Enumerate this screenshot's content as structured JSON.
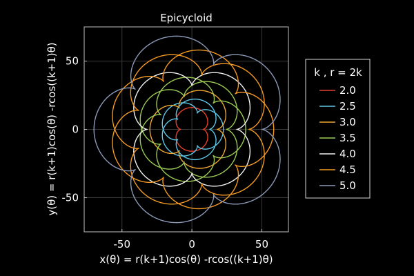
{
  "chart_data": {
    "type": "line",
    "title": "Epicycloid",
    "xlabel": "x(θ) = r(k+1)cos(θ) -rcos((k+1)θ)",
    "ylabel": "y(θ) = r(k+1)cos(θ) -rcos((k+1)θ)",
    "xlim": [
      -77,
      69
    ],
    "ylim": [
      -75,
      75
    ],
    "x_ticks": [
      -50,
      0,
      50
    ],
    "x_tick_labels": [
      "-50",
      "0",
      "50"
    ],
    "y_ticks": [
      -50,
      0,
      50
    ],
    "y_tick_labels": [
      "-50",
      "0",
      "50"
    ],
    "grid": true,
    "legend": {
      "title": "k , r = 2k",
      "placement": "right"
    },
    "background": "#000000",
    "series": [
      {
        "name": "2.0",
        "k": 2.0,
        "r": 4,
        "color": "#e8402c"
      },
      {
        "name": "2.5",
        "k": 2.5,
        "r": 5,
        "color": "#5ec8ea"
      },
      {
        "name": "3.0",
        "k": 3.0,
        "r": 6,
        "color": "#f0a830"
      },
      {
        "name": "3.5",
        "k": 3.5,
        "r": 7,
        "color": "#9ccc54"
      },
      {
        "name": "4.0",
        "k": 4.0,
        "r": 8,
        "color": "#f2f2f2"
      },
      {
        "name": "4.5",
        "k": 4.5,
        "r": 9,
        "color": "#f59a22"
      },
      {
        "name": "5.0",
        "k": 5.0,
        "r": 10,
        "color": "#8c9ab8"
      }
    ]
  }
}
